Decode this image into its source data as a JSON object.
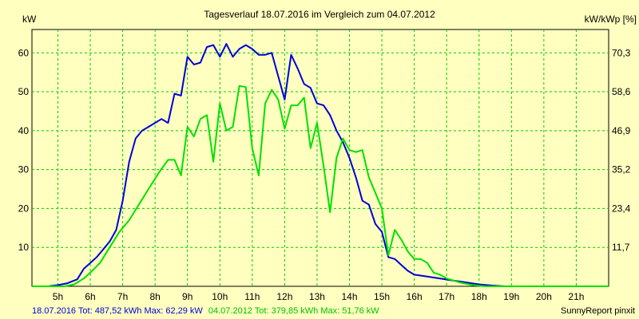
{
  "chart_data": {
    "type": "line",
    "title": "Tagesverlauf 18.07.2016 im Vergleich zum 04.07.2012",
    "ylabel_left": "kW",
    "ylabel_right": "kW/kWp [%]",
    "xlim": [
      4.2,
      22.0
    ],
    "ylim": [
      0,
      66
    ],
    "grid": true,
    "x_ticks": [
      {
        "x": 5,
        "label": "5h"
      },
      {
        "x": 6,
        "label": "6h"
      },
      {
        "x": 7,
        "label": "7h"
      },
      {
        "x": 8,
        "label": "8h"
      },
      {
        "x": 9,
        "label": "9h"
      },
      {
        "x": 10,
        "label": "10h"
      },
      {
        "x": 11,
        "label": "11h"
      },
      {
        "x": 12,
        "label": "12h"
      },
      {
        "x": 13,
        "label": "13h"
      },
      {
        "x": 14,
        "label": "14h"
      },
      {
        "x": 15,
        "label": "15h"
      },
      {
        "x": 16,
        "label": "16h"
      },
      {
        "x": 17,
        "label": "17h"
      },
      {
        "x": 18,
        "label": "18h"
      },
      {
        "x": 19,
        "label": "19h"
      },
      {
        "x": 20,
        "label": "20h"
      },
      {
        "x": 21,
        "label": "21h"
      }
    ],
    "y_ticks_left": [
      {
        "y": 10,
        "label": "10"
      },
      {
        "y": 20,
        "label": "20"
      },
      {
        "y": 30,
        "label": "30"
      },
      {
        "y": 40,
        "label": "40"
      },
      {
        "y": 50,
        "label": "50"
      },
      {
        "y": 60,
        "label": "60"
      }
    ],
    "y_ticks_right": [
      {
        "y": 10,
        "label": "11,7"
      },
      {
        "y": 20,
        "label": "23,4"
      },
      {
        "y": 30,
        "label": "35,2"
      },
      {
        "y": 40,
        "label": "46,9"
      },
      {
        "y": 50,
        "label": "58,6"
      },
      {
        "y": 60,
        "label": "70,3"
      }
    ],
    "series": [
      {
        "name": "18.07.2016",
        "color": "#0000D8",
        "points": [
          [
            4.2,
            0
          ],
          [
            4.7,
            0
          ],
          [
            5.0,
            0.3
          ],
          [
            5.3,
            0.8
          ],
          [
            5.6,
            1.8
          ],
          [
            5.8,
            4.5
          ],
          [
            6.0,
            6.0
          ],
          [
            6.2,
            7.5
          ],
          [
            6.4,
            9.5
          ],
          [
            6.6,
            11.5
          ],
          [
            6.8,
            14.5
          ],
          [
            7.0,
            22.0
          ],
          [
            7.2,
            32.0
          ],
          [
            7.4,
            38.0
          ],
          [
            7.6,
            40.0
          ],
          [
            7.8,
            41.0
          ],
          [
            8.0,
            42.0
          ],
          [
            8.2,
            43.0
          ],
          [
            8.4,
            42.0
          ],
          [
            8.6,
            49.5
          ],
          [
            8.8,
            49.0
          ],
          [
            9.0,
            59.0
          ],
          [
            9.2,
            57.0
          ],
          [
            9.4,
            57.5
          ],
          [
            9.6,
            61.5
          ],
          [
            9.8,
            62.0
          ],
          [
            10.0,
            59.0
          ],
          [
            10.2,
            62.3
          ],
          [
            10.4,
            59.0
          ],
          [
            10.6,
            61.0
          ],
          [
            10.8,
            62.0
          ],
          [
            11.0,
            61.0
          ],
          [
            11.2,
            59.5
          ],
          [
            11.4,
            59.5
          ],
          [
            11.6,
            60.0
          ],
          [
            11.8,
            54.0
          ],
          [
            12.0,
            48.0
          ],
          [
            12.2,
            59.5
          ],
          [
            12.4,
            56.0
          ],
          [
            12.6,
            52.0
          ],
          [
            12.8,
            51.0
          ],
          [
            13.0,
            47.0
          ],
          [
            13.2,
            46.5
          ],
          [
            13.4,
            44.0
          ],
          [
            13.6,
            40.0
          ],
          [
            13.8,
            37.0
          ],
          [
            14.0,
            33.0
          ],
          [
            14.2,
            28.0
          ],
          [
            14.4,
            22.0
          ],
          [
            14.6,
            21.0
          ],
          [
            14.8,
            16.0
          ],
          [
            15.0,
            14.0
          ],
          [
            15.2,
            7.5
          ],
          [
            15.4,
            7.0
          ],
          [
            15.6,
            5.5
          ],
          [
            15.8,
            4.0
          ],
          [
            16.0,
            3.0
          ],
          [
            16.4,
            2.5
          ],
          [
            16.8,
            2.0
          ],
          [
            17.2,
            1.5
          ],
          [
            17.6,
            1.0
          ],
          [
            18.0,
            0.5
          ],
          [
            18.4,
            0.2
          ],
          [
            18.8,
            0
          ],
          [
            22.0,
            0
          ]
        ]
      },
      {
        "name": "04.07.2012",
        "color": "#00E000",
        "points": [
          [
            4.2,
            0
          ],
          [
            5.2,
            0
          ],
          [
            5.5,
            0.5
          ],
          [
            5.8,
            2.0
          ],
          [
            6.0,
            3.5
          ],
          [
            6.3,
            6.0
          ],
          [
            6.6,
            10.0
          ],
          [
            6.9,
            14.0
          ],
          [
            7.2,
            17.0
          ],
          [
            7.5,
            21.0
          ],
          [
            7.8,
            25.0
          ],
          [
            8.1,
            29.0
          ],
          [
            8.4,
            32.5
          ],
          [
            8.6,
            32.5
          ],
          [
            8.8,
            28.5
          ],
          [
            9.0,
            41.0
          ],
          [
            9.2,
            38.5
          ],
          [
            9.4,
            43.0
          ],
          [
            9.6,
            44.0
          ],
          [
            9.8,
            32.0
          ],
          [
            10.0,
            47.0
          ],
          [
            10.2,
            40.0
          ],
          [
            10.4,
            41.0
          ],
          [
            10.6,
            51.5
          ],
          [
            10.8,
            51.2
          ],
          [
            11.0,
            35.5
          ],
          [
            11.2,
            28.5
          ],
          [
            11.4,
            47.0
          ],
          [
            11.6,
            50.5
          ],
          [
            11.8,
            48.0
          ],
          [
            12.0,
            40.5
          ],
          [
            12.2,
            46.5
          ],
          [
            12.4,
            46.5
          ],
          [
            12.6,
            48.5
          ],
          [
            12.8,
            35.5
          ],
          [
            13.0,
            42.0
          ],
          [
            13.2,
            31.0
          ],
          [
            13.4,
            19.0
          ],
          [
            13.6,
            33.0
          ],
          [
            13.8,
            38.0
          ],
          [
            14.0,
            35.0
          ],
          [
            14.2,
            34.5
          ],
          [
            14.4,
            35.0
          ],
          [
            14.6,
            28.0
          ],
          [
            14.8,
            24.0
          ],
          [
            15.0,
            20.0
          ],
          [
            15.2,
            8.0
          ],
          [
            15.4,
            14.5
          ],
          [
            15.6,
            12.0
          ],
          [
            15.8,
            9.0
          ],
          [
            16.0,
            7.0
          ],
          [
            16.2,
            7.0
          ],
          [
            16.4,
            6.0
          ],
          [
            16.6,
            3.5
          ],
          [
            16.8,
            3.0
          ],
          [
            17.0,
            2.0
          ],
          [
            17.4,
            1.0
          ],
          [
            17.8,
            0.3
          ],
          [
            18.2,
            0
          ],
          [
            22.0,
            0
          ]
        ]
      }
    ]
  },
  "footer": {
    "series1_text": "18.07.2016 Tot: 487,52 kWh Max: 62,29 kW",
    "series2_text": "04.07.2012 Tot: 379,85 kWh Max: 51,76 kW",
    "credit": "SunnyReport pinxit"
  }
}
